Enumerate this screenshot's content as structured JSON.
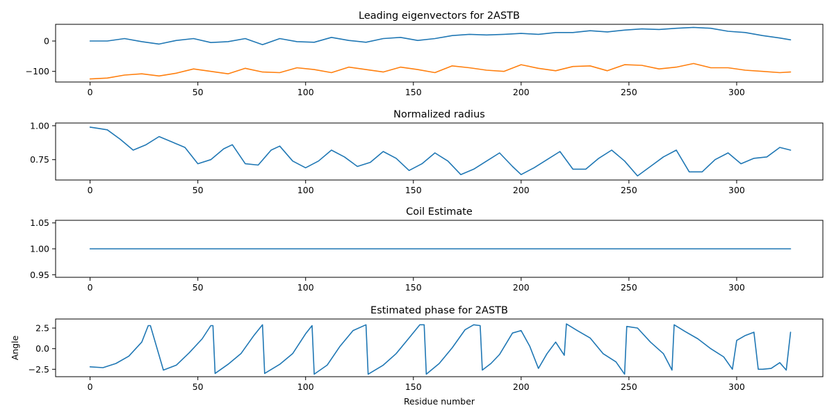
{
  "chart_data": [
    {
      "type": "line",
      "title": "Leading eigenvectors for 2ASTB",
      "xlabel": "",
      "ylabel": "",
      "xlim": [
        -16,
        340
      ],
      "ylim": [
        -135,
        55
      ],
      "xticks": [
        0,
        50,
        100,
        150,
        200,
        250,
        300
      ],
      "yticks": [
        0,
        -100
      ],
      "ytick_labels": [
        "0",
        "−100"
      ],
      "grid": false,
      "series": [
        {
          "color": "#1f77b4",
          "x": [
            0,
            8,
            16,
            24,
            32,
            40,
            48,
            56,
            64,
            72,
            80,
            88,
            96,
            104,
            112,
            120,
            128,
            136,
            144,
            152,
            160,
            168,
            176,
            184,
            192,
            200,
            208,
            216,
            224,
            232,
            240,
            248,
            256,
            264,
            272,
            280,
            288,
            296,
            304,
            312,
            320,
            325
          ],
          "y": [
            0,
            0,
            8,
            -2,
            -10,
            2,
            8,
            -5,
            -2,
            8,
            -12,
            8,
            -2,
            -4,
            12,
            2,
            -4,
            8,
            12,
            2,
            8,
            18,
            22,
            20,
            22,
            25,
            22,
            28,
            28,
            34,
            30,
            36,
            40,
            38,
            42,
            45,
            42,
            32,
            28,
            18,
            10,
            4
          ]
        },
        {
          "color": "#ff7f0e",
          "x": [
            0,
            8,
            16,
            24,
            32,
            40,
            48,
            56,
            64,
            72,
            80,
            88,
            96,
            104,
            112,
            120,
            128,
            136,
            144,
            152,
            160,
            168,
            176,
            184,
            192,
            200,
            208,
            216,
            224,
            232,
            240,
            248,
            256,
            264,
            272,
            280,
            288,
            296,
            304,
            312,
            320,
            325
          ],
          "y": [
            -125,
            -122,
            -112,
            -108,
            -115,
            -106,
            -92,
            -100,
            -108,
            -90,
            -102,
            -104,
            -88,
            -94,
            -104,
            -86,
            -94,
            -102,
            -86,
            -94,
            -104,
            -82,
            -88,
            -96,
            -100,
            -78,
            -90,
            -98,
            -84,
            -82,
            -98,
            -78,
            -80,
            -92,
            -86,
            -74,
            -88,
            -88,
            -96,
            -100,
            -104,
            -102
          ]
        }
      ]
    },
    {
      "type": "line",
      "title": "Normalized radius",
      "xlabel": "",
      "ylabel": "",
      "xlim": [
        -16,
        340
      ],
      "ylim": [
        0.6,
        1.02
      ],
      "xticks": [
        0,
        50,
        100,
        150,
        200,
        250,
        300
      ],
      "yticks": [
        0.75,
        1.0
      ],
      "ytick_labels": [
        "0.75",
        "1.00"
      ],
      "grid": false,
      "series": [
        {
          "color": "#1f77b4",
          "x": [
            0,
            4,
            8,
            14,
            20,
            26,
            32,
            38,
            44,
            50,
            56,
            62,
            66,
            72,
            78,
            84,
            88,
            94,
            100,
            106,
            112,
            118,
            124,
            130,
            136,
            142,
            148,
            154,
            160,
            166,
            172,
            178,
            184,
            190,
            196,
            200,
            206,
            212,
            218,
            224,
            230,
            236,
            242,
            248,
            254,
            260,
            266,
            272,
            278,
            284,
            290,
            296,
            302,
            308,
            314,
            320,
            325
          ],
          "y": [
            0.99,
            0.98,
            0.97,
            0.9,
            0.82,
            0.86,
            0.92,
            0.88,
            0.84,
            0.72,
            0.75,
            0.83,
            0.86,
            0.72,
            0.71,
            0.82,
            0.85,
            0.74,
            0.69,
            0.74,
            0.82,
            0.77,
            0.7,
            0.73,
            0.81,
            0.76,
            0.67,
            0.72,
            0.8,
            0.74,
            0.64,
            0.68,
            0.74,
            0.8,
            0.7,
            0.64,
            0.69,
            0.75,
            0.81,
            0.68,
            0.68,
            0.76,
            0.82,
            0.74,
            0.63,
            0.7,
            0.77,
            0.82,
            0.66,
            0.66,
            0.75,
            0.8,
            0.72,
            0.76,
            0.77,
            0.84,
            0.82
          ]
        }
      ]
    },
    {
      "type": "line",
      "title": "Coil Estimate",
      "xlabel": "",
      "ylabel": "",
      "xlim": [
        -16,
        340
      ],
      "ylim": [
        0.945,
        1.055
      ],
      "xticks": [
        0,
        50,
        100,
        150,
        200,
        250,
        300
      ],
      "yticks": [
        0.95,
        1.0,
        1.05
      ],
      "ytick_labels": [
        "0.95",
        "1.00",
        "1.05"
      ],
      "grid": false,
      "series": [
        {
          "color": "#1f77b4",
          "x": [
            0,
            325
          ],
          "y": [
            1.0,
            1.0
          ]
        }
      ]
    },
    {
      "type": "line",
      "title": "Estimated phase for 2ASTB",
      "xlabel": "Residue number",
      "ylabel": "Angle",
      "xlim": [
        -16,
        340
      ],
      "ylim": [
        -3.4,
        3.6
      ],
      "xticks": [
        0,
        50,
        100,
        150,
        200,
        250,
        300
      ],
      "yticks": [
        2.5,
        0.0,
        -2.5
      ],
      "ytick_labels": [
        "2.5",
        "0.0",
        "−2.5"
      ],
      "grid": false,
      "series": [
        {
          "color": "#1f77b4",
          "x": [
            0,
            6,
            12,
            18,
            24,
            27,
            28,
            34,
            40,
            46,
            52,
            56,
            57,
            58,
            64,
            70,
            76,
            80,
            81,
            88,
            94,
            100,
            103,
            104,
            110,
            116,
            122,
            128,
            129,
            136,
            142,
            148,
            153,
            155,
            156,
            162,
            168,
            174,
            178,
            181,
            182,
            186,
            190,
            196,
            200,
            204,
            208,
            212,
            216,
            220,
            221,
            226,
            232,
            238,
            244,
            248,
            249,
            254,
            260,
            266,
            270,
            271,
            276,
            282,
            288,
            294,
            298,
            300,
            304,
            308,
            310,
            312,
            316,
            320,
            323,
            325
          ],
          "y": [
            -2.2,
            -2.3,
            -1.8,
            -0.9,
            0.8,
            2.8,
            2.8,
            -2.6,
            -2.0,
            -0.5,
            1.2,
            2.8,
            2.8,
            -3.0,
            -1.9,
            -0.6,
            1.6,
            2.9,
            -3.0,
            -1.9,
            -0.6,
            1.8,
            2.8,
            -3.1,
            -2.0,
            0.3,
            2.2,
            2.9,
            -3.1,
            -2.0,
            -0.6,
            1.3,
            2.9,
            2.9,
            -3.1,
            -1.8,
            0.1,
            2.3,
            2.9,
            2.8,
            -2.6,
            -1.8,
            -0.7,
            1.9,
            2.2,
            0.3,
            -2.4,
            -0.6,
            0.8,
            -0.8,
            3.0,
            2.2,
            1.3,
            -0.6,
            -1.6,
            -3.1,
            2.7,
            2.5,
            0.8,
            -0.6,
            -2.6,
            2.9,
            2.1,
            1.2,
            0.0,
            -1.0,
            -2.5,
            1.0,
            1.6,
            2.0,
            -2.5,
            -2.5,
            -2.4,
            -1.7,
            -2.6,
            2.0
          ]
        }
      ]
    }
  ]
}
